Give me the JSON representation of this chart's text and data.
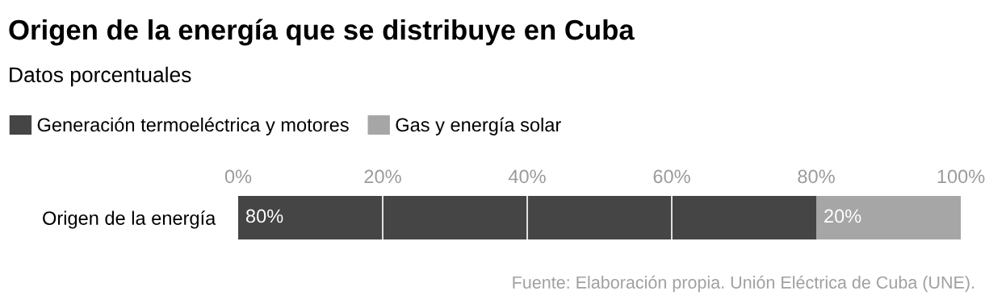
{
  "chart_data": {
    "type": "bar",
    "orientation": "horizontal",
    "stacked": true,
    "title": "Origen de la energía que se distribuye en Cuba",
    "subtitle": "Datos porcentuales",
    "categories": [
      "Origen de la energía"
    ],
    "series": [
      {
        "name": "Generación termoeléctrica y motores",
        "color": "#454545",
        "values": [
          80
        ],
        "value_labels": [
          "80%"
        ]
      },
      {
        "name": "Gas y energía solar",
        "color": "#a6a6a6",
        "values": [
          20
        ],
        "value_labels": [
          "20%"
        ]
      }
    ],
    "xlim": [
      0,
      100
    ],
    "xticks": [
      {
        "value": 0,
        "label": "0%"
      },
      {
        "value": 20,
        "label": "20%"
      },
      {
        "value": 40,
        "label": "40%"
      },
      {
        "value": 60,
        "label": "60%"
      },
      {
        "value": 80,
        "label": "80%"
      },
      {
        "value": 100,
        "label": "100%"
      }
    ],
    "ref_lines": [
      {
        "axis": "x",
        "value": 20,
        "color": "#ffffff"
      },
      {
        "axis": "x",
        "value": 40,
        "color": "#ffffff"
      },
      {
        "axis": "x",
        "value": 60,
        "color": "#ffffff"
      }
    ],
    "legend": "top left",
    "annotations": [
      "Fuente: Elaboración propia. Unión Eléctrica de Cuba (UNE)."
    ]
  }
}
